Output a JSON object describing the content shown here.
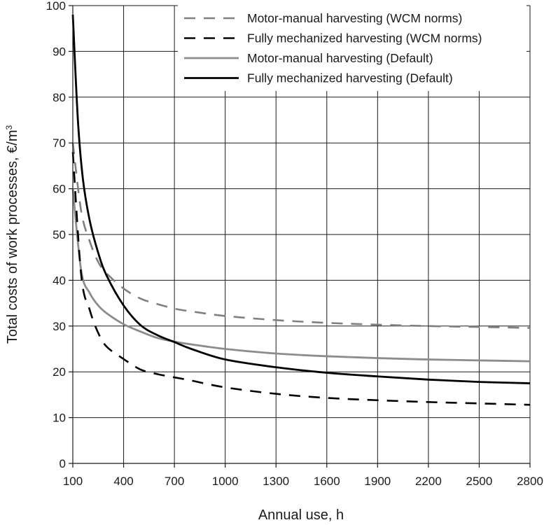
{
  "chart_data": {
    "type": "line",
    "xlabel": "Annual use, h",
    "ylabel": "Total costs of work processes, €/m",
    "ylabel_superscript": "3",
    "xlim": [
      100,
      2800
    ],
    "ylim": [
      0,
      100
    ],
    "xticks": [
      100,
      400,
      700,
      1000,
      1300,
      1600,
      1900,
      2200,
      2500,
      2800
    ],
    "yticks": [
      0,
      10,
      20,
      30,
      40,
      50,
      60,
      70,
      80,
      90,
      100
    ],
    "grid": true,
    "legend_position": "top-right",
    "series": [
      {
        "name": "Motor-manual harvesting (WCM norms)",
        "color": "#808080",
        "dash": "dashed",
        "x": [
          100,
          150,
          200,
          250,
          300,
          400,
          500,
          600,
          700,
          800,
          1000,
          1300,
          1600,
          1900,
          2200,
          2500,
          2800
        ],
        "y": [
          70,
          55,
          48.5,
          44,
          41.5,
          38.2,
          36,
          34.8,
          33.8,
          33.2,
          32.2,
          31.3,
          30.7,
          30.3,
          30.0,
          29.8,
          29.6
        ]
      },
      {
        "name": "Fully mechanized harvesting (WCM norms)",
        "color": "#000000",
        "dash": "dashed",
        "x": [
          100,
          150,
          200,
          250,
          300,
          400,
          500,
          600,
          700,
          800,
          1000,
          1300,
          1600,
          1900,
          2200,
          2500,
          2800
        ],
        "y": [
          68,
          41,
          33.5,
          28.5,
          25.5,
          22.8,
          20.5,
          19.5,
          18.8,
          18.1,
          16.6,
          15.2,
          14.3,
          13.8,
          13.4,
          13.1,
          12.8
        ]
      },
      {
        "name": "Motor-manual harvesting (Default)",
        "color": "#8c8c8c",
        "dash": "solid",
        "x": [
          100,
          150,
          200,
          250,
          300,
          400,
          500,
          600,
          700,
          800,
          1000,
          1300,
          1600,
          1900,
          2200,
          2500,
          2800
        ],
        "y": [
          60,
          42,
          37.2,
          34.5,
          32.8,
          30.4,
          28.8,
          27.4,
          26.6,
          26.0,
          25.0,
          24.0,
          23.4,
          23.0,
          22.7,
          22.5,
          22.3
        ]
      },
      {
        "name": "Fully mechanized harvesting (Default)",
        "color": "#000000",
        "dash": "solid",
        "x": [
          100,
          130,
          160,
          200,
          250,
          300,
          400,
          500,
          600,
          700,
          800,
          1000,
          1300,
          1600,
          1900,
          2200,
          2500,
          2800
        ],
        "y": [
          98,
          75,
          62,
          53,
          46,
          41,
          34.5,
          30.2,
          28.0,
          26.5,
          25.0,
          22.7,
          21.0,
          19.8,
          19.0,
          18.3,
          17.8,
          17.5
        ]
      }
    ]
  }
}
